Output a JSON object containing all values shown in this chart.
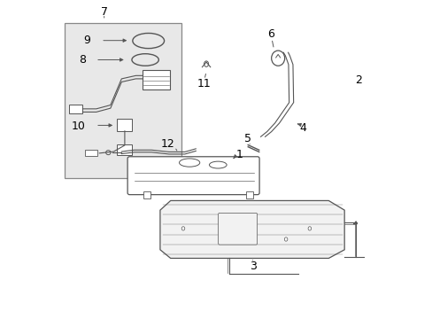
{
  "bg_color": "#ffffff",
  "line_color": "#555555",
  "label_color": "#000000",
  "inset_bg": "#e8e8e8",
  "inset_border": "#888888",
  "label_fontsize": 9
}
